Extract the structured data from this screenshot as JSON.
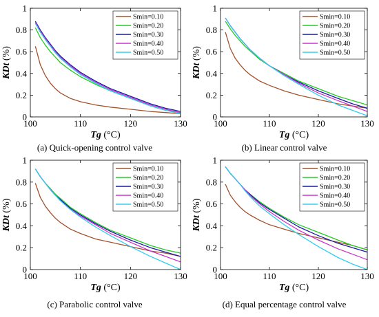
{
  "chart_data": [
    {
      "type": "line",
      "caption": "(a) Quick-opening control valve",
      "xlabel_var": "Tg",
      "xlabel_unit": " (°C)",
      "ylabel_var": "KDt",
      "ylabel_unit": " (%)",
      "xlim": [
        100,
        130
      ],
      "ylim": [
        0,
        1
      ],
      "xticks": [
        100,
        110,
        120,
        130
      ],
      "yticks": [
        0,
        0.2,
        0.4,
        0.6,
        0.8,
        1
      ],
      "ytick_labels": [
        "0",
        "0.2",
        "0.4",
        "0.6",
        "0.8",
        "1"
      ],
      "legend_position": "top-right",
      "grid": false,
      "series": [
        {
          "name": "Smin=0.10",
          "color": "#a0522d",
          "x": [
            101,
            102,
            103,
            104,
            105,
            106,
            108,
            110,
            113,
            116,
            120,
            124,
            127,
            130
          ],
          "y": [
            0.65,
            0.48,
            0.38,
            0.31,
            0.26,
            0.22,
            0.17,
            0.14,
            0.11,
            0.09,
            0.07,
            0.05,
            0.04,
            0.03
          ]
        },
        {
          "name": "Smin=0.20",
          "color": "#22cc22",
          "x": [
            101,
            102,
            103,
            104,
            105,
            106,
            108,
            110,
            113,
            116,
            120,
            124,
            127,
            130
          ],
          "y": [
            0.82,
            0.73,
            0.66,
            0.6,
            0.55,
            0.5,
            0.43,
            0.37,
            0.3,
            0.24,
            0.17,
            0.11,
            0.07,
            0.03
          ]
        },
        {
          "name": "Smin=0.30",
          "color": "#1a1aa6",
          "x": [
            101,
            102,
            103,
            104,
            105,
            106,
            108,
            110,
            113,
            116,
            120,
            124,
            127,
            130
          ],
          "y": [
            0.88,
            0.8,
            0.73,
            0.67,
            0.61,
            0.56,
            0.48,
            0.41,
            0.33,
            0.26,
            0.19,
            0.12,
            0.08,
            0.05
          ]
        },
        {
          "name": "Smin=0.40",
          "color": "#cc33cc",
          "x": [
            101,
            102,
            103,
            104,
            105,
            106,
            108,
            110,
            113,
            116,
            120,
            124,
            127,
            130
          ],
          "y": [
            0.87,
            0.79,
            0.72,
            0.66,
            0.6,
            0.55,
            0.47,
            0.4,
            0.32,
            0.25,
            0.18,
            0.11,
            0.07,
            0.04
          ]
        },
        {
          "name": "Smin=0.50",
          "color": "#33ccee",
          "x": [
            101,
            102,
            103,
            104,
            105,
            106,
            108,
            110,
            113,
            116,
            120,
            124,
            127,
            130
          ],
          "y": [
            0.86,
            0.78,
            0.71,
            0.65,
            0.59,
            0.54,
            0.46,
            0.39,
            0.31,
            0.24,
            0.17,
            0.1,
            0.06,
            0.03
          ]
        }
      ]
    },
    {
      "type": "line",
      "caption": "(b) Linear control valve",
      "xlabel_var": "Tg",
      "xlabel_unit": " (°C)",
      "ylabel_var": "KDt",
      "ylabel_unit": " (%)",
      "xlim": [
        100,
        130
      ],
      "ylim": [
        0,
        1
      ],
      "xticks": [
        100,
        110,
        120,
        130
      ],
      "yticks": [
        0,
        0.2,
        0.4,
        0.6,
        0.8,
        1
      ],
      "ytick_labels": [
        "0",
        "0.2",
        "0.4",
        "0.6",
        "0.8",
        "1"
      ],
      "legend_position": "top-right",
      "grid": false,
      "series": [
        {
          "name": "Smin=0.10",
          "color": "#a0522d",
          "x": [
            101,
            102,
            103,
            104,
            105,
            106,
            108,
            110,
            113,
            116,
            120,
            124,
            127,
            130
          ],
          "y": [
            0.78,
            0.63,
            0.54,
            0.48,
            0.43,
            0.39,
            0.33,
            0.29,
            0.24,
            0.2,
            0.16,
            0.12,
            0.1,
            0.08
          ]
        },
        {
          "name": "Smin=0.20",
          "color": "#22cc22",
          "x": [
            101,
            102,
            103,
            104,
            105,
            106,
            108,
            110,
            113,
            116,
            120,
            124,
            127,
            130
          ],
          "y": [
            0.88,
            0.81,
            0.75,
            0.7,
            0.65,
            0.61,
            0.53,
            0.47,
            0.4,
            0.33,
            0.26,
            0.19,
            0.15,
            0.11
          ]
        },
        {
          "name": "Smin=0.30",
          "color": "#1a1aa6",
          "x": [
            101,
            102,
            103,
            104,
            105,
            106,
            108,
            110,
            113,
            116,
            120,
            124,
            127,
            130
          ],
          "y": [
            0.91,
            0.84,
            0.78,
            0.72,
            0.67,
            0.62,
            0.54,
            0.47,
            0.39,
            0.32,
            0.24,
            0.17,
            0.12,
            0.08
          ]
        },
        {
          "name": "Smin=0.40",
          "color": "#cc33cc",
          "x": [
            101,
            102,
            103,
            104,
            105,
            106,
            108,
            110,
            113,
            116,
            120,
            124,
            127,
            130
          ],
          "y": [
            0.91,
            0.84,
            0.78,
            0.72,
            0.67,
            0.62,
            0.54,
            0.47,
            0.39,
            0.31,
            0.22,
            0.15,
            0.1,
            0.05
          ]
        },
        {
          "name": "Smin=0.50",
          "color": "#33ccee",
          "x": [
            101,
            102,
            103,
            104,
            105,
            106,
            108,
            110,
            113,
            116,
            120,
            124,
            127,
            130
          ],
          "y": [
            0.91,
            0.84,
            0.78,
            0.72,
            0.67,
            0.62,
            0.54,
            0.47,
            0.38,
            0.3,
            0.2,
            0.11,
            0.06,
            0.01
          ]
        }
      ]
    },
    {
      "type": "line",
      "caption": "(c) Parabolic control valve",
      "xlabel_var": "Tg",
      "xlabel_unit": " (°C)",
      "ylabel_var": "KDt",
      "ylabel_unit": " (%)",
      "xlim": [
        100,
        130
      ],
      "ylim": [
        0,
        1
      ],
      "xticks": [
        100,
        110,
        120,
        130
      ],
      "yticks": [
        0,
        0.2,
        0.4,
        0.6,
        0.8,
        1
      ],
      "ytick_labels": [
        "0",
        "0.2",
        "0.4",
        "0.6",
        "0.8",
        "1"
      ],
      "legend_position": "top-right",
      "grid": false,
      "series": [
        {
          "name": "Smin=0.10",
          "color": "#a0522d",
          "x": [
            101,
            102,
            103,
            104,
            105,
            106,
            108,
            110,
            113,
            116,
            120,
            124,
            127,
            130
          ],
          "y": [
            0.79,
            0.66,
            0.58,
            0.52,
            0.47,
            0.43,
            0.37,
            0.33,
            0.28,
            0.25,
            0.21,
            0.17,
            0.15,
            0.12
          ]
        },
        {
          "name": "Smin=0.20",
          "color": "#22cc22",
          "x": [
            101,
            102,
            103,
            104,
            105,
            106,
            108,
            110,
            113,
            116,
            120,
            124,
            127,
            130
          ],
          "y": [
            0.92,
            0.85,
            0.79,
            0.74,
            0.69,
            0.65,
            0.57,
            0.51,
            0.43,
            0.36,
            0.29,
            0.22,
            0.18,
            0.15
          ]
        },
        {
          "name": "Smin=0.30",
          "color": "#1a1aa6",
          "x": [
            101,
            102,
            103,
            104,
            105,
            106,
            108,
            110,
            113,
            116,
            120,
            124,
            127,
            130
          ],
          "y": [
            0.92,
            0.85,
            0.79,
            0.73,
            0.68,
            0.64,
            0.56,
            0.5,
            0.42,
            0.35,
            0.27,
            0.2,
            0.16,
            0.12
          ]
        },
        {
          "name": "Smin=0.40",
          "color": "#cc33cc",
          "x": [
            101,
            102,
            103,
            104,
            105,
            106,
            108,
            110,
            113,
            116,
            120,
            124,
            127,
            130
          ],
          "y": [
            0.92,
            0.85,
            0.79,
            0.73,
            0.68,
            0.63,
            0.55,
            0.49,
            0.41,
            0.33,
            0.25,
            0.17,
            0.12,
            0.07
          ]
        },
        {
          "name": "Smin=0.50",
          "color": "#33ccee",
          "x": [
            101,
            102,
            103,
            104,
            105,
            106,
            108,
            110,
            113,
            116,
            120,
            124,
            127,
            130
          ],
          "y": [
            0.92,
            0.85,
            0.79,
            0.73,
            0.68,
            0.63,
            0.55,
            0.48,
            0.39,
            0.31,
            0.21,
            0.12,
            0.06,
            0.0
          ]
        }
      ]
    },
    {
      "type": "line",
      "caption": "(d) Equal percentage control valve",
      "xlabel_var": "Tg",
      "xlabel_unit": " (°C)",
      "ylabel_var": "KDt",
      "ylabel_unit": " (%)",
      "xlim": [
        100,
        130
      ],
      "ylim": [
        0,
        1
      ],
      "xticks": [
        100,
        110,
        120,
        130
      ],
      "yticks": [
        0,
        0.2,
        0.4,
        0.6,
        0.8,
        1
      ],
      "ytick_labels": [
        "0",
        "0.2",
        "0.4",
        "0.6",
        "0.8",
        "1"
      ],
      "legend_position": "top-right",
      "grid": false,
      "series": [
        {
          "name": "Smin=0.10",
          "color": "#a0522d",
          "x": [
            101,
            102,
            103,
            104,
            105,
            106,
            108,
            110,
            113,
            116,
            120,
            124,
            127,
            130
          ],
          "y": [
            0.78,
            0.68,
            0.62,
            0.57,
            0.53,
            0.5,
            0.45,
            0.41,
            0.37,
            0.33,
            0.29,
            0.25,
            0.22,
            0.18
          ]
        },
        {
          "name": "Smin=0.20",
          "color": "#22cc22",
          "x": [
            101,
            102,
            103,
            104,
            105,
            106,
            108,
            110,
            113,
            116,
            120,
            124,
            127,
            130
          ],
          "y": [
            0.94,
            0.88,
            0.83,
            0.78,
            0.73,
            0.69,
            0.62,
            0.56,
            0.48,
            0.41,
            0.34,
            0.27,
            0.22,
            0.18
          ]
        },
        {
          "name": "Smin=0.30",
          "color": "#1a1aa6",
          "x": [
            101,
            102,
            103,
            104,
            105,
            106,
            108,
            110,
            113,
            116,
            120,
            124,
            127,
            130
          ],
          "y": [
            0.94,
            0.88,
            0.83,
            0.78,
            0.73,
            0.69,
            0.61,
            0.55,
            0.47,
            0.39,
            0.31,
            0.24,
            0.2,
            0.16
          ]
        },
        {
          "name": "Smin=0.40",
          "color": "#cc33cc",
          "x": [
            101,
            102,
            103,
            104,
            105,
            106,
            108,
            110,
            113,
            116,
            120,
            124,
            127,
            130
          ],
          "y": [
            0.94,
            0.88,
            0.83,
            0.78,
            0.73,
            0.68,
            0.6,
            0.53,
            0.44,
            0.36,
            0.27,
            0.19,
            0.14,
            0.09
          ]
        },
        {
          "name": "Smin=0.50",
          "color": "#33ccee",
          "x": [
            101,
            102,
            103,
            104,
            105,
            106,
            108,
            110,
            113,
            116,
            120,
            124,
            127,
            130
          ],
          "y": [
            0.94,
            0.88,
            0.83,
            0.78,
            0.72,
            0.67,
            0.58,
            0.51,
            0.41,
            0.32,
            0.21,
            0.11,
            0.05,
            0.0
          ]
        }
      ]
    }
  ]
}
